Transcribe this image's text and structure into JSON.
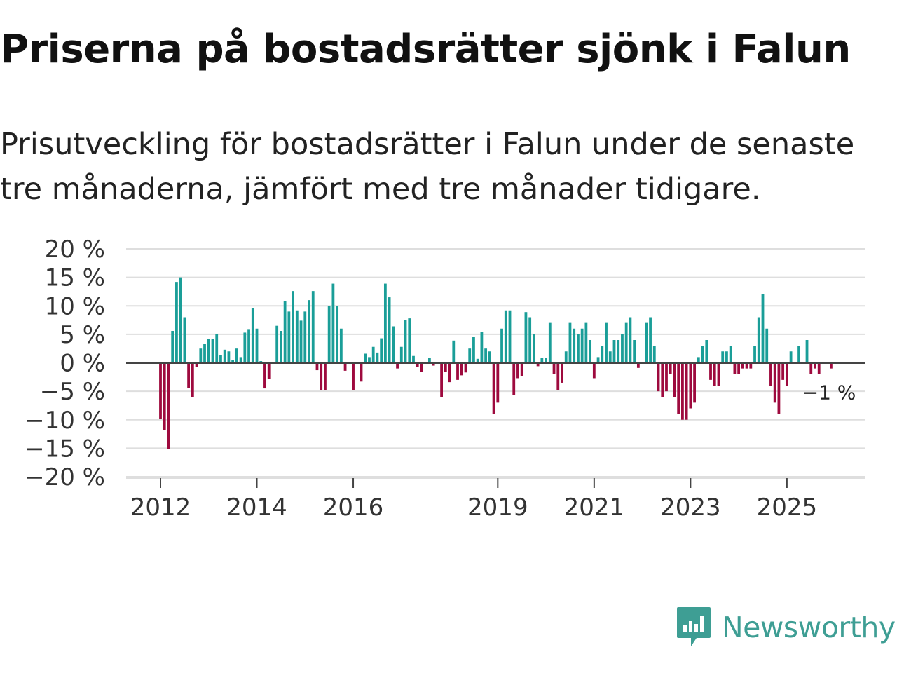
{
  "title": "Priserna på bostadsrätter sjönk i Falun",
  "subtitle": "Prisutveckling för bostadsrätter i Falun under de senaste tre månaderna, jämfört med tre månader tidigare.",
  "brand": "Newsworthy",
  "colors": {
    "positive": "#1a9e98",
    "negative": "#9e0a3e",
    "grid": "#dedede",
    "zero": "#444444",
    "brand": "#3e9e94"
  },
  "chart_data": {
    "type": "bar",
    "title": "Priserna på bostadsrätter sjönk i Falun",
    "xlabel": "",
    "ylabel": "",
    "ylim": [
      -20,
      20
    ],
    "yticks": [
      20,
      15,
      10,
      5,
      0,
      -5,
      -10,
      -15,
      -20
    ],
    "ytick_labels": [
      "20 %",
      "15 %",
      "10 %",
      "5 %",
      "0 %",
      "−5 %",
      "−10 %",
      "−15 %",
      "−20 %"
    ],
    "x_start": "2012-01",
    "xticks": [
      "2012",
      "2014",
      "2016",
      "2019",
      "2021",
      "2023",
      "2025"
    ],
    "annotation": {
      "label": "−1 %",
      "value": -1
    },
    "values": [
      -9.8,
      -11.8,
      -15.2,
      5.6,
      14.2,
      15.0,
      8.0,
      -4.4,
      -6.0,
      -0.8,
      2.5,
      3.3,
      4.2,
      4.2,
      5.0,
      1.3,
      2.3,
      2.0,
      0.5,
      2.5,
      1.0,
      5.3,
      5.8,
      9.6,
      6.0,
      0.3,
      -4.5,
      -2.8,
      0.0,
      6.5,
      5.6,
      10.8,
      9.0,
      12.6,
      9.2,
      7.4,
      9.0,
      11.0,
      12.6,
      -1.3,
      -4.8,
      -4.8,
      10.0,
      13.9,
      10.0,
      6.0,
      -1.4,
      0.0,
      -4.8,
      0.0,
      -3.3,
      1.6,
      1.0,
      2.8,
      1.8,
      4.3,
      13.9,
      11.5,
      6.4,
      -1.0,
      2.8,
      7.5,
      7.8,
      1.2,
      -0.7,
      -1.6,
      0.0,
      0.8,
      -0.5,
      0.0,
      -6.0,
      -1.6,
      -3.4,
      3.9,
      -3.0,
      -2.2,
      -1.7,
      2.5,
      4.5,
      0.7,
      5.4,
      2.5,
      2.0,
      -9.0,
      -7.0,
      6.0,
      9.2,
      9.2,
      -5.7,
      -2.7,
      -2.4,
      8.9,
      8.0,
      5.0,
      -0.6,
      0.9,
      0.9,
      7.0,
      -2.0,
      -4.8,
      -3.5,
      2.0,
      7.0,
      6.0,
      5.0,
      6.0,
      7.0,
      4.0,
      -2.7,
      1.0,
      3.0,
      7.0,
      2.0,
      4.0,
      4.0,
      5.0,
      7.0,
      8.0,
      4.0,
      -0.9,
      0.0,
      7.0,
      8.0,
      3.0,
      -5.0,
      -6.0,
      -5.0,
      -2.0,
      -6.0,
      -9.0,
      -10.0,
      -10.0,
      -8.0,
      -7.0,
      1.0,
      3.0,
      4.0,
      -3.0,
      -4.0,
      -4.0,
      2.0,
      2.0,
      3.0,
      -2.0,
      -2.0,
      -1.0,
      -1.0,
      -1.0,
      3.0,
      8.0,
      12.0,
      6.0,
      -4.0,
      -7.0,
      -9.0,
      -3.0,
      -4.0,
      2.0,
      0.0,
      3.0,
      0.0,
      4.0,
      -2.0,
      -1.0,
      -2.0,
      0.0,
      0.0,
      -1.0
    ]
  }
}
